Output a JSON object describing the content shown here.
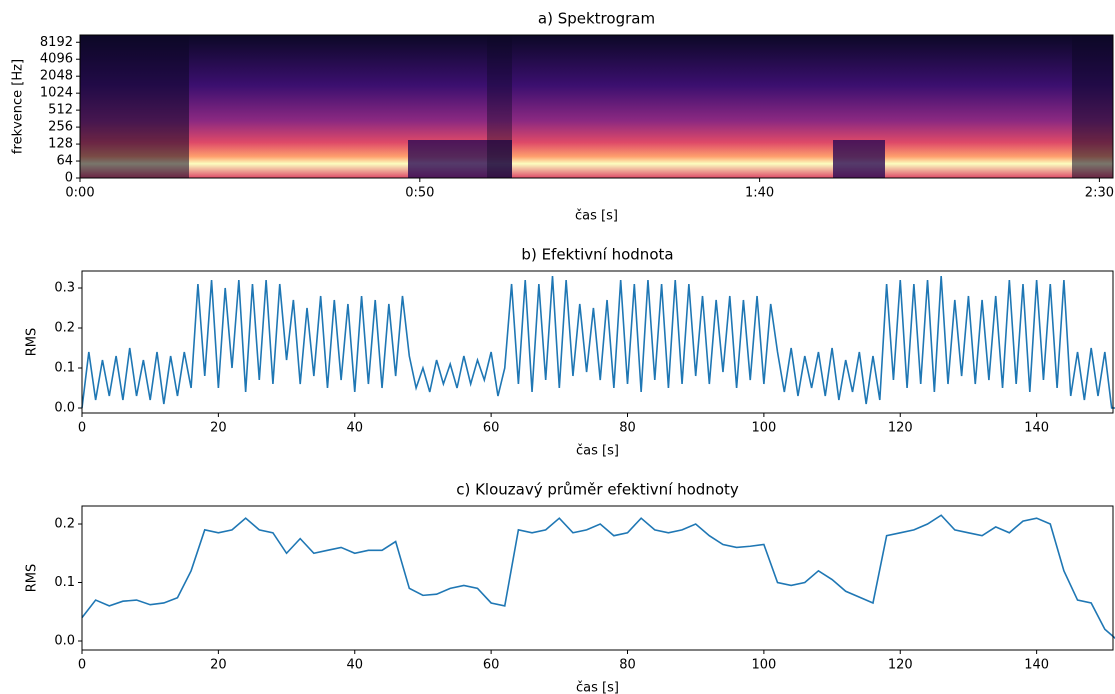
{
  "chart_data": [
    {
      "type": "spectrogram",
      "title": "a) Spektrogram",
      "xlabel": "čas [s]",
      "ylabel": "frekvence [Hz]",
      "xlim": [
        0,
        152
      ],
      "xticks": [
        {
          "value": 0,
          "label": "0:00"
        },
        {
          "value": 50,
          "label": "0:50"
        },
        {
          "value": 100,
          "label": "1:40"
        },
        {
          "value": 150,
          "label": "2:30"
        }
      ],
      "ylim": [
        0,
        11025
      ],
      "yscale": "symlog",
      "yticks": [
        0,
        64,
        128,
        256,
        512,
        1024,
        2048,
        4096,
        8192
      ]
    },
    {
      "type": "line",
      "title": "b) Efektivní hodnota",
      "xlabel": "čas [s]",
      "ylabel": "RMS",
      "color": "#1f77b4",
      "xlim": [
        0,
        151.2
      ],
      "xticks": [
        0,
        20,
        40,
        60,
        80,
        100,
        120,
        140
      ],
      "ylim": [
        -0.0125,
        0.3425
      ],
      "yticks": [
        {
          "value": 0,
          "label": "0.0"
        },
        {
          "value": 0.1,
          "label": "0.1"
        },
        {
          "value": 0.2,
          "label": "0.2"
        },
        {
          "value": 0.3,
          "label": "0.3"
        }
      ],
      "x": [
        0,
        1,
        2,
        3,
        4,
        5,
        6,
        7,
        8,
        9,
        10,
        11,
        12,
        13,
        14,
        15,
        16,
        17,
        18,
        19,
        20,
        21,
        22,
        23,
        24,
        25,
        26,
        27,
        28,
        29,
        30,
        31,
        32,
        33,
        34,
        35,
        36,
        37,
        38,
        39,
        40,
        41,
        42,
        43,
        44,
        45,
        46,
        47,
        48,
        49,
        50,
        51,
        52,
        53,
        54,
        55,
        56,
        57,
        58,
        59,
        60,
        61,
        62,
        63,
        64,
        65,
        66,
        67,
        68,
        69,
        70,
        71,
        72,
        73,
        74,
        75,
        76,
        77,
        78,
        79,
        80,
        81,
        82,
        83,
        84,
        85,
        86,
        87,
        88,
        89,
        90,
        91,
        92,
        93,
        94,
        95,
        96,
        97,
        98,
        99,
        100,
        101,
        102,
        103,
        104,
        105,
        106,
        107,
        108,
        109,
        110,
        111,
        112,
        113,
        114,
        115,
        116,
        117,
        118,
        119,
        120,
        121,
        122,
        123,
        124,
        125,
        126,
        127,
        128,
        129,
        130,
        131,
        132,
        133,
        134,
        135,
        136,
        137,
        138,
        139,
        140,
        141,
        142,
        143,
        144,
        145,
        146,
        147,
        148,
        149,
        150,
        151,
        152
      ],
      "values": [
        0.0,
        0.14,
        0.02,
        0.12,
        0.03,
        0.13,
        0.02,
        0.15,
        0.03,
        0.12,
        0.02,
        0.14,
        0.01,
        0.13,
        0.03,
        0.14,
        0.05,
        0.31,
        0.08,
        0.32,
        0.05,
        0.3,
        0.1,
        0.32,
        0.04,
        0.31,
        0.07,
        0.32,
        0.06,
        0.31,
        0.12,
        0.27,
        0.06,
        0.25,
        0.08,
        0.28,
        0.05,
        0.27,
        0.07,
        0.26,
        0.04,
        0.28,
        0.06,
        0.27,
        0.05,
        0.26,
        0.08,
        0.28,
        0.13,
        0.05,
        0.1,
        0.04,
        0.12,
        0.06,
        0.11,
        0.05,
        0.13,
        0.06,
        0.12,
        0.07,
        0.14,
        0.03,
        0.1,
        0.31,
        0.06,
        0.32,
        0.04,
        0.31,
        0.07,
        0.33,
        0.05,
        0.32,
        0.08,
        0.26,
        0.09,
        0.25,
        0.07,
        0.27,
        0.05,
        0.32,
        0.06,
        0.31,
        0.04,
        0.32,
        0.07,
        0.31,
        0.05,
        0.32,
        0.06,
        0.31,
        0.08,
        0.28,
        0.06,
        0.27,
        0.09,
        0.28,
        0.05,
        0.27,
        0.07,
        0.28,
        0.06,
        0.26,
        0.14,
        0.04,
        0.15,
        0.03,
        0.13,
        0.05,
        0.14,
        0.03,
        0.15,
        0.02,
        0.12,
        0.04,
        0.14,
        0.01,
        0.13,
        0.02,
        0.31,
        0.07,
        0.32,
        0.05,
        0.31,
        0.06,
        0.32,
        0.04,
        0.33,
        0.06,
        0.27,
        0.08,
        0.28,
        0.06,
        0.27,
        0.07,
        0.28,
        0.05,
        0.32,
        0.06,
        0.31,
        0.04,
        0.32,
        0.07,
        0.31,
        0.05,
        0.32,
        0.03,
        0.14,
        0.02,
        0.15,
        0.03,
        0.14,
        0.0,
        0.0
      ]
    },
    {
      "type": "line",
      "title": "c) Klouzavý průměr efektivní hodnoty",
      "xlabel": "čas [s]",
      "ylabel": "RMS",
      "color": "#1f77b4",
      "xlim": [
        0,
        151.2
      ],
      "xticks": [
        0,
        20,
        40,
        60,
        80,
        100,
        120,
        140
      ],
      "ylim": [
        -0.0154,
        0.2308
      ],
      "yticks": [
        {
          "value": 0,
          "label": "0.0"
        },
        {
          "value": 0.1,
          "label": "0.1"
        },
        {
          "value": 0.2,
          "label": "0.2"
        }
      ],
      "x": [
        0,
        2,
        4,
        6,
        8,
        10,
        12,
        14,
        16,
        18,
        20,
        22,
        24,
        26,
        28,
        30,
        32,
        34,
        36,
        38,
        40,
        42,
        44,
        46,
        48,
        50,
        52,
        54,
        56,
        58,
        60,
        62,
        64,
        66,
        68,
        70,
        72,
        74,
        76,
        78,
        80,
        82,
        84,
        86,
        88,
        90,
        92,
        94,
        96,
        98,
        100,
        102,
        104,
        106,
        108,
        110,
        112,
        114,
        116,
        118,
        120,
        122,
        124,
        126,
        128,
        130,
        132,
        134,
        136,
        138,
        140,
        142,
        144,
        146,
        148,
        150,
        152
      ],
      "values": [
        0.04,
        0.07,
        0.06,
        0.068,
        0.07,
        0.062,
        0.065,
        0.074,
        0.12,
        0.19,
        0.185,
        0.19,
        0.21,
        0.19,
        0.185,
        0.15,
        0.175,
        0.15,
        0.155,
        0.16,
        0.15,
        0.155,
        0.155,
        0.17,
        0.09,
        0.078,
        0.08,
        0.09,
        0.095,
        0.09,
        0.065,
        0.06,
        0.19,
        0.185,
        0.19,
        0.21,
        0.185,
        0.19,
        0.2,
        0.18,
        0.185,
        0.21,
        0.19,
        0.185,
        0.19,
        0.2,
        0.18,
        0.165,
        0.16,
        0.162,
        0.165,
        0.1,
        0.095,
        0.1,
        0.12,
        0.105,
        0.085,
        0.075,
        0.065,
        0.18,
        0.185,
        0.19,
        0.2,
        0.215,
        0.19,
        0.185,
        0.18,
        0.195,
        0.185,
        0.205,
        0.21,
        0.2,
        0.12,
        0.07,
        0.065,
        0.02,
        0.0
      ]
    }
  ]
}
